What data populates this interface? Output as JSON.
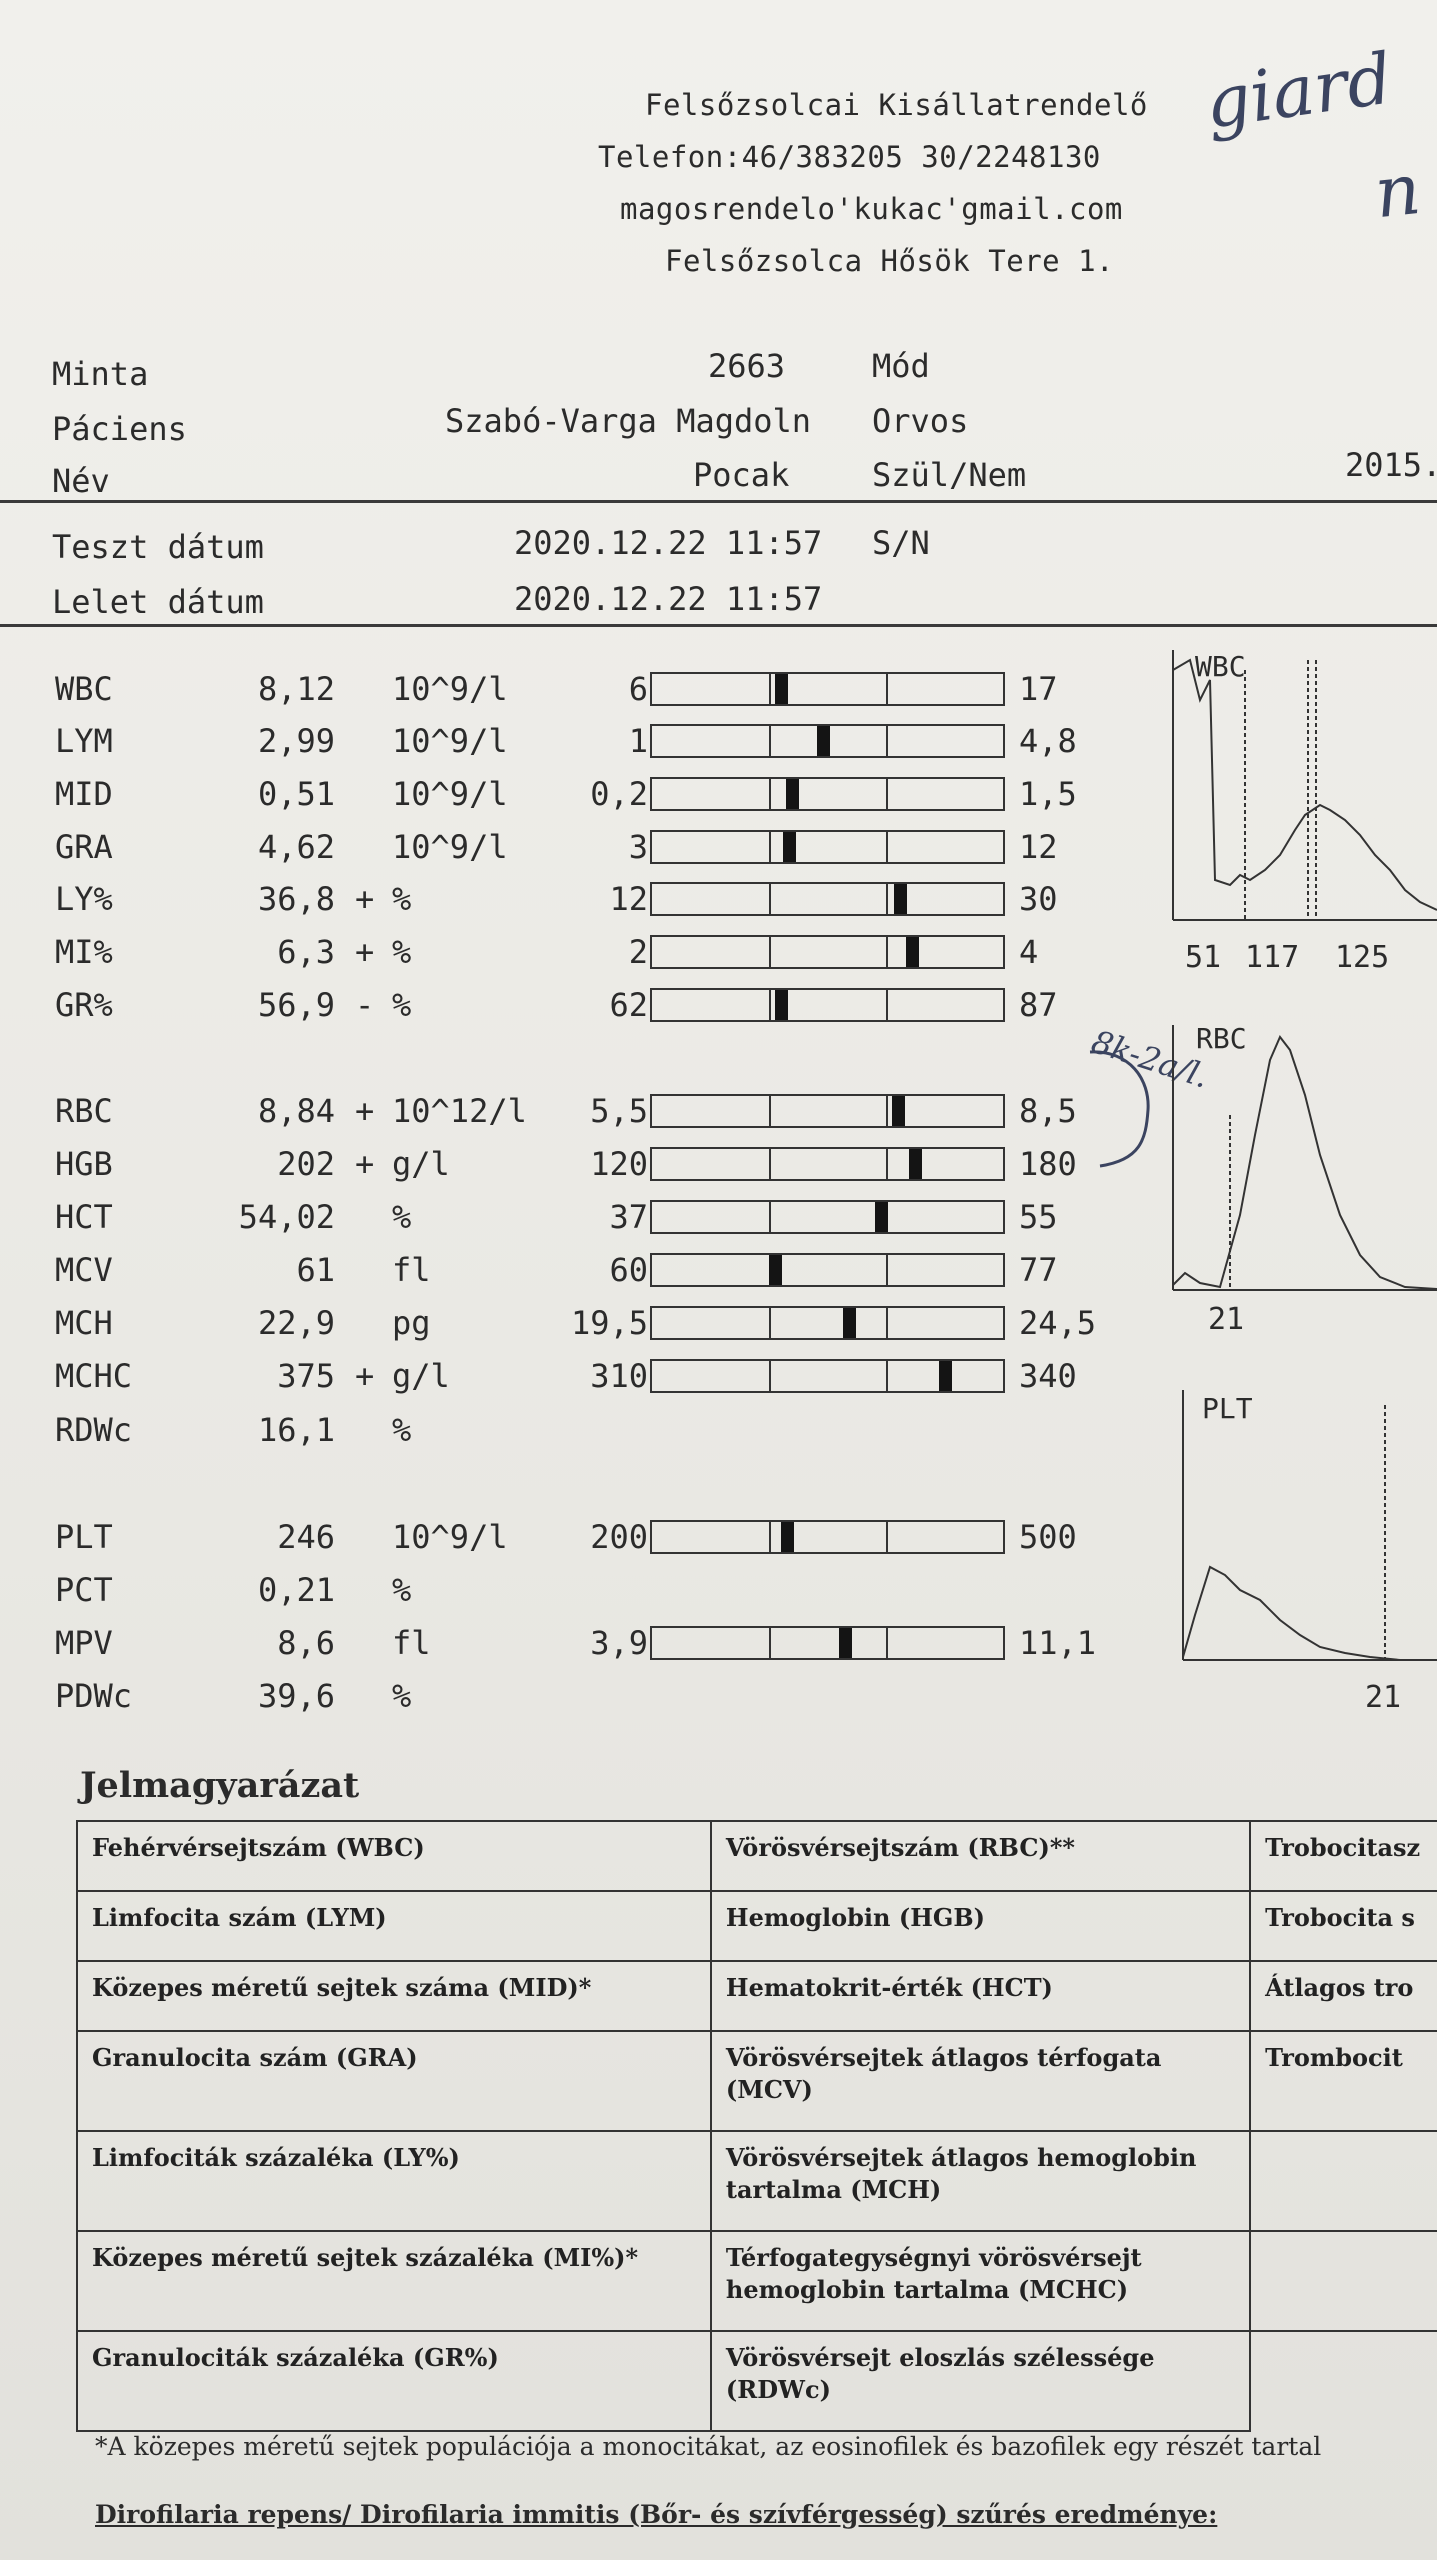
{
  "clinic": {
    "name": "Felsőzsolcai Kisállatrendelő",
    "phone": "Telefon:46/383205  30/2248130",
    "email": "magosrendelo'kukac'gmail.com",
    "address": "Felsőzsolca Hősök Tere 1."
  },
  "handwriting": {
    "top_note": "giard",
    "top_note2": "n",
    "rbc_note": "8k-2a/l."
  },
  "info": {
    "minta_label": "Minta",
    "minta_value": "2663",
    "mod_label": "Mód",
    "paciens_label": "Páciens",
    "paciens_value": "Szabó-Varga Magdoln",
    "orvos_label": "Orvos",
    "nev_label": "Név",
    "nev_value": "Pocak",
    "szul_label": "Szül/Nem",
    "szul_value": "2015.",
    "teszt_label": "Teszt dátum",
    "teszt_value": "2020.12.22 11:57",
    "sn_label": "S/N",
    "lelet_label": "Lelet dátum",
    "lelet_value": "2020.12.22 11:57"
  },
  "results": [
    {
      "name": "WBC",
      "value": "8,12",
      "flag": "",
      "unit": "10^9/l",
      "low": "6",
      "high": "17",
      "marker": 0.1
    },
    {
      "name": "LYM",
      "value": "2,99",
      "flag": "",
      "unit": "10^9/l",
      "low": "1",
      "high": "4,8",
      "marker": 0.46
    },
    {
      "name": "MID",
      "value": "0,51",
      "flag": "",
      "unit": "10^9/l",
      "low": "0,2",
      "high": "1,5",
      "marker": 0.2
    },
    {
      "name": "GRA",
      "value": "4,62",
      "flag": "",
      "unit": "10^9/l",
      "low": "3",
      "high": "12",
      "marker": 0.17
    },
    {
      "name": "LY%",
      "value": "36,8",
      "flag": "+",
      "unit": "%",
      "low": "12",
      "high": "30",
      "marker": 1.12
    },
    {
      "name": "MI%",
      "value": "6,3",
      "flag": "+",
      "unit": "%",
      "low": "2",
      "high": "4",
      "marker": 1.22
    },
    {
      "name": "GR%",
      "value": "56,9",
      "flag": "-",
      "unit": "%",
      "low": "62",
      "high": "87",
      "marker": 0.1
    },
    {
      "name": "RBC",
      "value": "8,84",
      "flag": "+",
      "unit": "10^12/l",
      "low": "5,5",
      "high": "8,5",
      "marker": 1.1
    },
    {
      "name": "HGB",
      "value": "202",
      "flag": "+",
      "unit": "g/l",
      "low": "120",
      "high": "180",
      "marker": 1.25
    },
    {
      "name": "HCT",
      "value": "54,02",
      "flag": "",
      "unit": "%",
      "low": "37",
      "high": "55",
      "marker": 0.96
    },
    {
      "name": "MCV",
      "value": "61",
      "flag": "",
      "unit": "fl",
      "low": "60",
      "high": "77",
      "marker": 0.05
    },
    {
      "name": "MCH",
      "value": "22,9",
      "flag": "",
      "unit": "pg",
      "low": "19,5",
      "high": "24,5",
      "marker": 0.68
    },
    {
      "name": "MCHC",
      "value": "375",
      "flag": "+",
      "unit": "g/l",
      "low": "310",
      "high": "340",
      "marker": 1.5
    },
    {
      "name": "RDWc",
      "value": "16,1",
      "flag": "",
      "unit": "%",
      "low": "",
      "high": "",
      "marker": null
    },
    {
      "name": "PLT",
      "value": "246",
      "flag": "",
      "unit": "10^9/l",
      "low": "200",
      "high": "500",
      "marker": 0.15
    },
    {
      "name": "PCT",
      "value": "0,21",
      "flag": "",
      "unit": "%",
      "low": "",
      "high": "",
      "marker": null
    },
    {
      "name": "MPV",
      "value": "8,6",
      "flag": "",
      "unit": "fl",
      "low": "3,9",
      "high": "11,1",
      "marker": 0.65
    },
    {
      "name": "PDWc",
      "value": "39,6",
      "flag": "",
      "unit": "%",
      "low": "",
      "high": "",
      "marker": null
    }
  ],
  "histograms": {
    "wbc": {
      "label": "WBC",
      "ticks": [
        "51",
        "117",
        "125"
      ]
    },
    "rbc": {
      "label": "RBC",
      "ticks": [
        "21"
      ]
    },
    "plt": {
      "label": "PLT",
      "ticks": [
        "21"
      ]
    }
  },
  "legend": {
    "title": "Jelmagyarázat",
    "rows": [
      [
        "Fehérvérsejtszám (WBC)",
        "Vörösvérsejtszám (RBC)**",
        "Trobocitasz"
      ],
      [
        "Limfocita szám (LYM)",
        "Hemoglobin (HGB)",
        "Trobocita s"
      ],
      [
        "Közepes méretű sejtek száma (MID)*",
        "Hematokrit-érték (HCT)",
        "Átlagos tro"
      ],
      [
        "Granulocita szám (GRA)",
        "Vörösvérsejtek átlagos térfogata (MCV)",
        "Trombocit"
      ],
      [
        "Limfociták százaléka (LY%)",
        "Vörösvérsejtek átlagos hemoglobin tartalma (MCH)",
        ""
      ],
      [
        "Közepes méretű sejtek százaléka (MI%)*",
        "Térfogategységnyi vörösvérsejt hemoglobin tartalma (MCHC)",
        ""
      ],
      [
        "Granulociták százaléka (GR%)",
        "Vörösvérsejt eloszlás szélessége (RDWc)",
        ""
      ]
    ],
    "footnote": "*A közepes méretű sejtek populációja a monocitákat, az eosinofilek és bazofilek egy részét tartal",
    "bottom": "Dirofilaria repens/ Dirofilaria immitis (Bőr- és szívférgesség) szűrés eredménye:"
  }
}
